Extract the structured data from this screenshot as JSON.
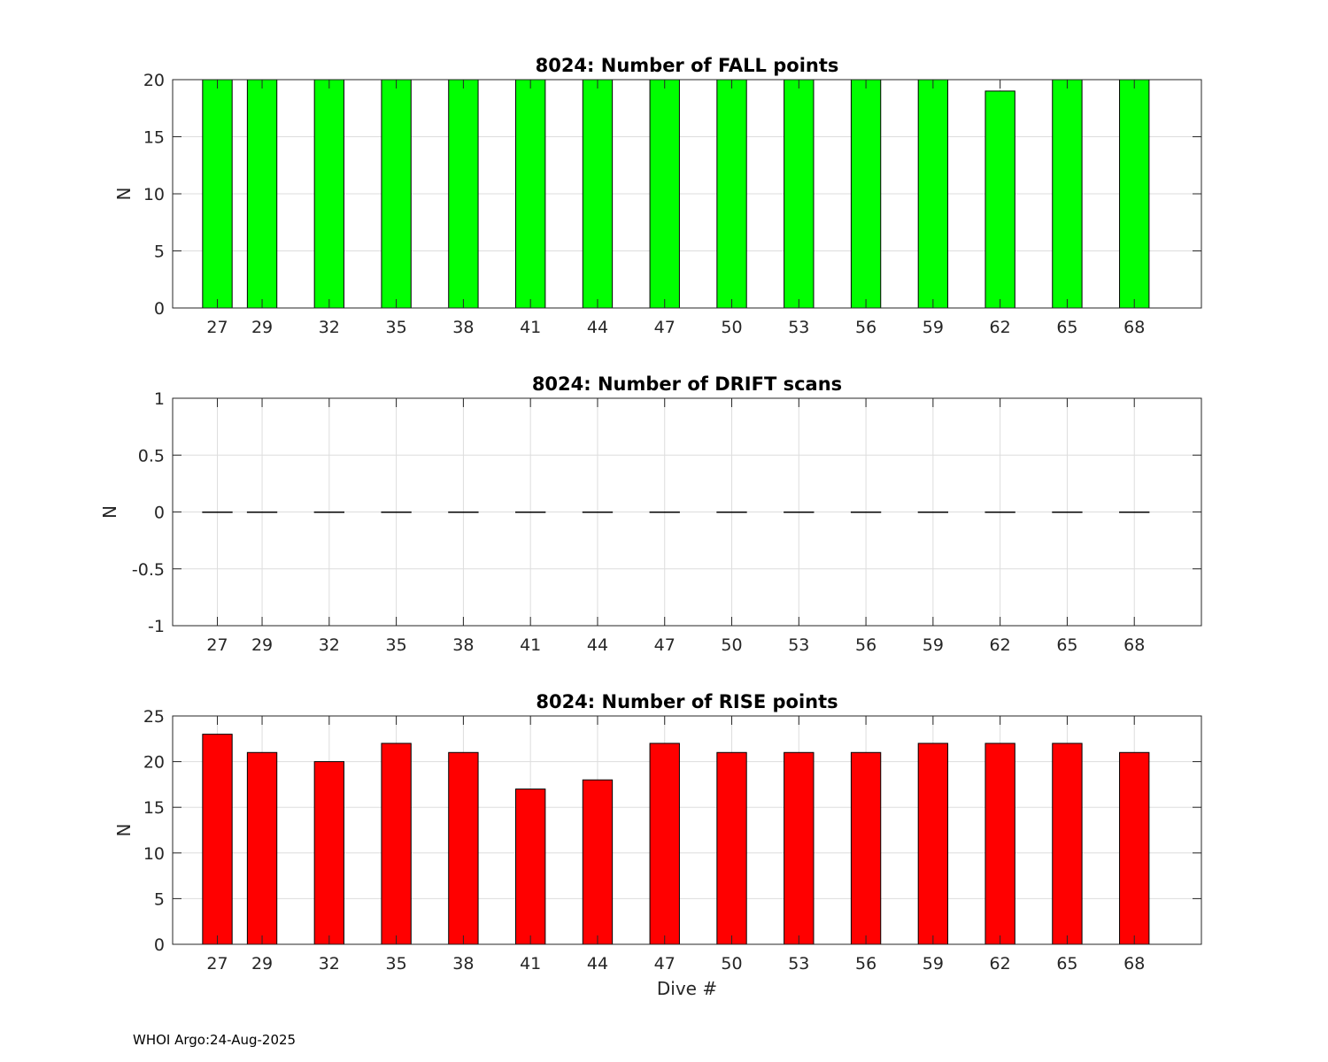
{
  "footer": "WHOI Argo:24-Aug-2025",
  "colors": {
    "fall": "#00ff00",
    "drift": "#000000",
    "rise": "#ff0000",
    "grid": "#dddddd",
    "text": "#262626"
  },
  "chart_data": [
    {
      "type": "bar",
      "title": "8024: Number of FALL points",
      "xlabel": "",
      "ylabel": "N",
      "xlim": [
        25,
        71
      ],
      "ylim": [
        0,
        20
      ],
      "yticks": [
        0,
        5,
        10,
        15,
        20
      ],
      "ytick_labels": [
        "0",
        "5",
        "10",
        "15",
        "20"
      ],
      "xticks": [
        27,
        29,
        32,
        35,
        38,
        41,
        44,
        47,
        50,
        53,
        56,
        59,
        62,
        65,
        68
      ],
      "xtick_labels": [
        "27",
        "29",
        "32",
        "35",
        "38",
        "41",
        "44",
        "47",
        "50",
        "53",
        "56",
        "59",
        "62",
        "65",
        "68"
      ],
      "grid": true,
      "x": [
        27,
        29,
        32,
        35,
        38,
        41,
        44,
        47,
        50,
        53,
        56,
        59,
        62,
        65,
        68
      ],
      "values": [
        20,
        20,
        20,
        20,
        20,
        20,
        20,
        20,
        20,
        20,
        20,
        20,
        19,
        20,
        20
      ],
      "color": "#00ff00"
    },
    {
      "type": "bar",
      "title": "8024: Number of DRIFT scans",
      "xlabel": "",
      "ylabel": "N",
      "xlim": [
        25,
        71
      ],
      "ylim": [
        -1,
        1
      ],
      "yticks": [
        -1,
        -0.5,
        0,
        0.5,
        1
      ],
      "ytick_labels": [
        "-1",
        "-0.5",
        "0",
        "0.5",
        "1"
      ],
      "xticks": [
        27,
        29,
        32,
        35,
        38,
        41,
        44,
        47,
        50,
        53,
        56,
        59,
        62,
        65,
        68
      ],
      "xtick_labels": [
        "27",
        "29",
        "32",
        "35",
        "38",
        "41",
        "44",
        "47",
        "50",
        "53",
        "56",
        "59",
        "62",
        "65",
        "68"
      ],
      "grid": true,
      "x": [
        27,
        29,
        32,
        35,
        38,
        41,
        44,
        47,
        50,
        53,
        56,
        59,
        62,
        65,
        68
      ],
      "values": [
        0,
        0,
        0,
        0,
        0,
        0,
        0,
        0,
        0,
        0,
        0,
        0,
        0,
        0,
        0
      ],
      "color": "#000000"
    },
    {
      "type": "bar",
      "title": "8024: Number of RISE points",
      "xlabel": "Dive #",
      "ylabel": "N",
      "xlim": [
        25,
        71
      ],
      "ylim": [
        0,
        25
      ],
      "yticks": [
        0,
        5,
        10,
        15,
        20,
        25
      ],
      "ytick_labels": [
        "0",
        "5",
        "10",
        "15",
        "20",
        "25"
      ],
      "xticks": [
        27,
        29,
        32,
        35,
        38,
        41,
        44,
        47,
        50,
        53,
        56,
        59,
        62,
        65,
        68
      ],
      "xtick_labels": [
        "27",
        "29",
        "32",
        "35",
        "38",
        "41",
        "44",
        "47",
        "50",
        "53",
        "56",
        "59",
        "62",
        "65",
        "68"
      ],
      "grid": true,
      "x": [
        27,
        29,
        32,
        35,
        38,
        41,
        44,
        47,
        50,
        53,
        56,
        59,
        62,
        65,
        68
      ],
      "values": [
        23,
        21,
        20,
        22,
        21,
        17,
        18,
        22,
        21,
        21,
        21,
        22,
        22,
        22,
        21
      ],
      "color": "#ff0000"
    }
  ]
}
